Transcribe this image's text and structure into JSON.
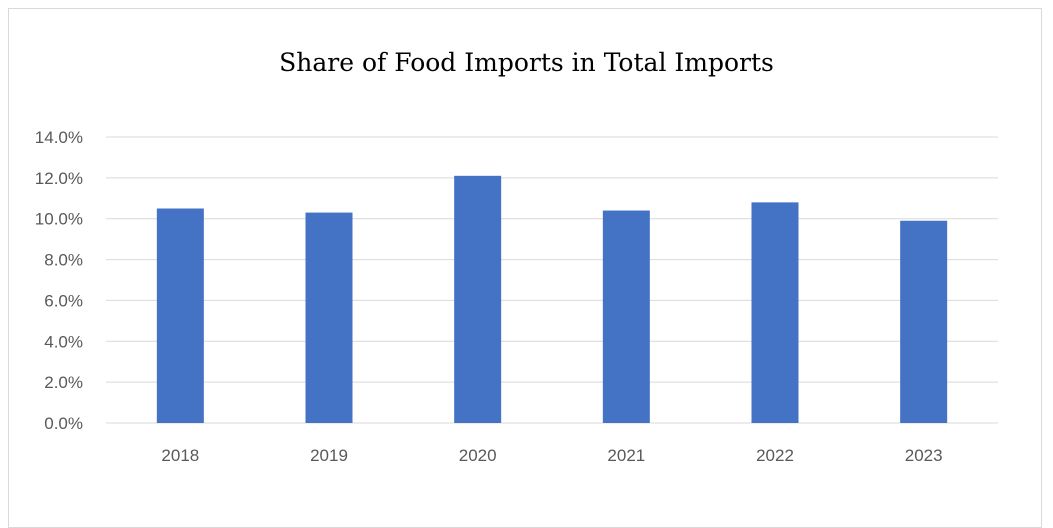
{
  "chart_data": {
    "type": "bar",
    "title": "Share of Food Imports in Total Imports",
    "categories": [
      "2018",
      "2019",
      "2020",
      "2021",
      "2022",
      "2023"
    ],
    "values": [
      10.5,
      10.3,
      12.1,
      10.4,
      10.8,
      9.9
    ],
    "ylim": [
      0,
      14
    ],
    "ytick_values": [
      0,
      2,
      4,
      6,
      8,
      10,
      12,
      14
    ],
    "ytick_labels": [
      "0.0%",
      "2.0%",
      "4.0%",
      "6.0%",
      "8.0%",
      "10.0%",
      "12.0%",
      "14.0%"
    ],
    "xlabel": "",
    "ylabel": "",
    "grid": true,
    "legend": "none",
    "bar_color": "#4472c4",
    "grid_color": "#d9d9d9"
  }
}
